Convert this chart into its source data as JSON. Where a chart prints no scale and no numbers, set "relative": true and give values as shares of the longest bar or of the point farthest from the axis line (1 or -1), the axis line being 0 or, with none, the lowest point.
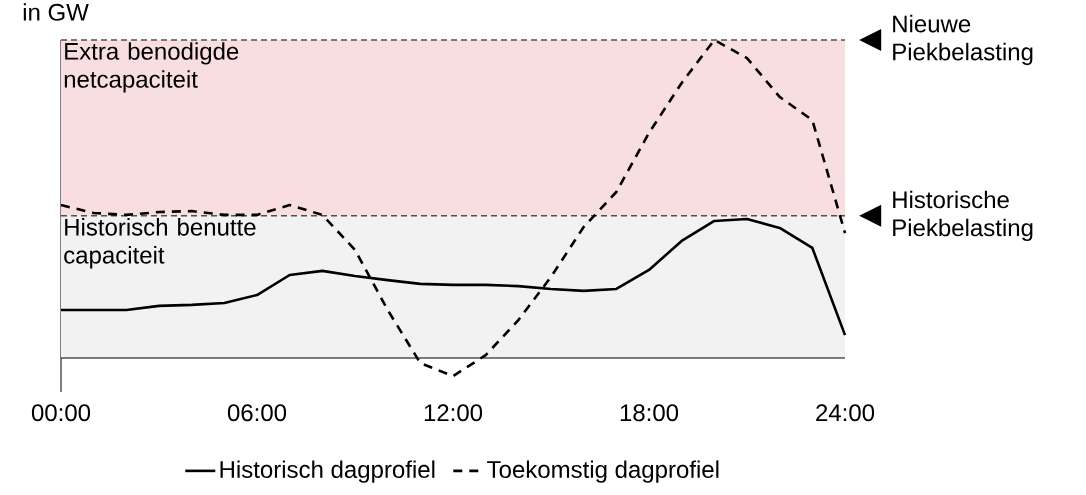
{
  "chart_data": {
    "type": "line",
    "ylabel": "in GW",
    "relative": true,
    "legend": "bottom",
    "x": [
      0,
      1,
      2,
      3,
      4,
      5,
      6,
      7,
      8,
      9,
      10,
      11,
      12,
      13,
      14,
      15,
      16,
      17,
      18,
      19,
      20,
      21,
      22,
      23,
      24
    ],
    "xlim": [
      0,
      24
    ],
    "xticks": [
      {
        "value": 0,
        "label": "00:00"
      },
      {
        "value": 6,
        "label": "06:00"
      },
      {
        "value": 12,
        "label": "12:00"
      },
      {
        "value": 18,
        "label": "18:00"
      },
      {
        "value": 24,
        "label": "24:00"
      }
    ],
    "series": [
      {
        "name": "Historisch dagprofiel",
        "color": "#000000",
        "line_style": "solid",
        "values": [
          0.151,
          0.151,
          0.151,
          0.164,
          0.167,
          0.173,
          0.198,
          0.261,
          0.274,
          0.258,
          0.245,
          0.233,
          0.23,
          0.23,
          0.226,
          0.217,
          0.211,
          0.217,
          0.277,
          0.368,
          0.431,
          0.437,
          0.409,
          0.346,
          0.072
        ]
      },
      {
        "name": "Toekomstig dagprofiel",
        "color": "#000000",
        "line_style": "dashed",
        "values": [
          0.481,
          0.456,
          0.45,
          0.459,
          0.462,
          0.45,
          0.45,
          0.481,
          0.45,
          0.34,
          0.151,
          -0.016,
          -0.057,
          0.009,
          0.119,
          0.255,
          0.412,
          0.522,
          0.708,
          0.865,
          1.0,
          0.943,
          0.821,
          0.748,
          0.393
        ]
      }
    ],
    "bands": [
      {
        "axis": "y",
        "from": 0,
        "to": 0.447,
        "label": "Historisch benutte capaciteit",
        "color": "#f2f2f2"
      },
      {
        "axis": "y",
        "from": 0.447,
        "to": 1.0,
        "label": "Extra benodigde netcapaciteit",
        "color": "#f8dde1"
      }
    ],
    "ref_lines": [
      {
        "axis": "y",
        "value": 0.447,
        "label": "Historische Piekbelasting",
        "line_style": "dashed",
        "color": "#000000"
      },
      {
        "axis": "y",
        "value": 1.0,
        "label": "Nieuwe Piekbelasting",
        "line_style": "dashed",
        "color": "#000000"
      }
    ]
  }
}
